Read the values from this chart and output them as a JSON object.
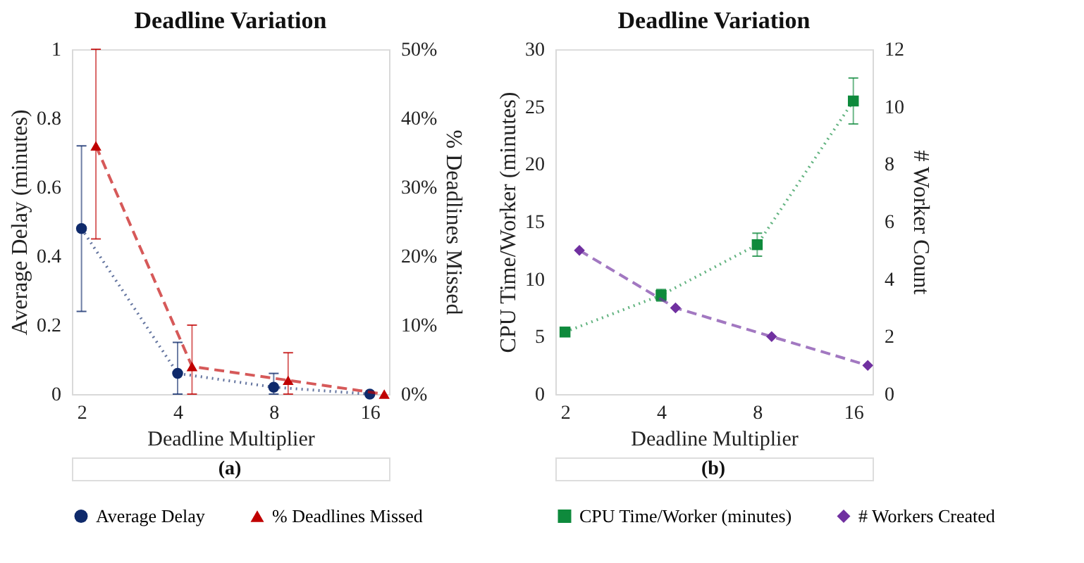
{
  "chart_data": [
    {
      "type": "line",
      "title": "Deadline Variation",
      "xlabel": "Deadline Multiplier",
      "ylabel": "Average Delay (minutes)",
      "y2label": "% Deadlines Missed",
      "categories": [
        "2",
        "4",
        "8",
        "16"
      ],
      "ylim": [
        0,
        1
      ],
      "yticks": [
        {
          "value": 0,
          "label": "0"
        },
        0.2,
        0.4,
        0.6,
        0.8,
        1
      ],
      "y2lim": [
        0,
        50
      ],
      "y2ticks": [
        {
          "value": 0,
          "label": "0%"
        },
        {
          "value": 10,
          "label": "10%"
        },
        {
          "value": 20,
          "label": "20%"
        },
        {
          "value": 30,
          "label": "30%"
        },
        {
          "value": 40,
          "label": "40%"
        },
        {
          "value": 50,
          "label": "50%"
        }
      ],
      "grid": false,
      "legend": "bottom",
      "annotations": [
        "(a)"
      ],
      "series": [
        {
          "name": "Average Delay",
          "color": "#0f2a6b",
          "values": [
            0.48,
            0.06,
            0.02,
            0
          ],
          "errors": [
            [
              0.24,
              0.72
            ],
            [
              0,
              0.15
            ],
            [
              0,
              0.06
            ],
            null
          ],
          "marker": "circle",
          "line_style": "dotted",
          "axis": "y"
        },
        {
          "name": "% Deadlines Missed",
          "color": "#c00000",
          "values": [
            36,
            4,
            2,
            0
          ],
          "errors": [
            [
              22.5,
              50
            ],
            [
              0,
              10
            ],
            [
              0,
              6
            ],
            null
          ],
          "marker": "triangle",
          "line_style": "dashed",
          "axis": "y2"
        }
      ]
    },
    {
      "type": "line",
      "title": "Deadline Variation",
      "xlabel": "Deadline Multiplier",
      "ylabel": "CPU Time/Worker (minutes)",
      "y2label": "# Worker Count",
      "categories": [
        "2",
        "4",
        "8",
        "16"
      ],
      "ylim": [
        0,
        30
      ],
      "yticks": [
        0,
        5,
        10,
        15,
        20,
        25,
        30
      ],
      "y2lim": [
        0,
        12
      ],
      "y2ticks": [
        0,
        2,
        4,
        6,
        8,
        10,
        12
      ],
      "grid": false,
      "legend": "bottom",
      "annotations": [
        "(b)"
      ],
      "series": [
        {
          "name": "CPU Time/Worker (minutes)",
          "color": "#0e8a3c",
          "values": [
            5.4,
            8.6,
            13,
            25.5
          ],
          "errors": [
            null,
            [
              8.1,
              9.1
            ],
            [
              12,
              14
            ],
            [
              23.5,
              27.5
            ]
          ],
          "marker": "square",
          "line_style": "dotted",
          "axis": "y"
        },
        {
          "name": "# Workers Created",
          "color": "#7030a0",
          "values": [
            5,
            3,
            2,
            1
          ],
          "marker": "diamond",
          "line_style": "dashed",
          "axis": "y2"
        }
      ]
    }
  ]
}
